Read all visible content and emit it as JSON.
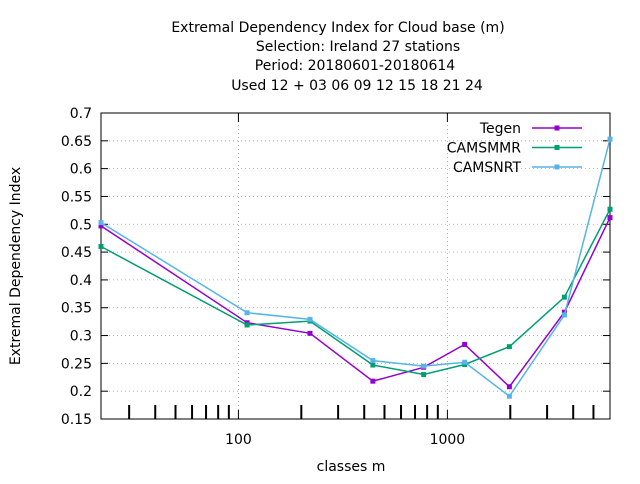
{
  "chart_data": {
    "type": "line",
    "title_lines": [
      "Extremal Dependency Index  for Cloud base (m)",
      "Selection: Ireland      27 stations",
      "Period: 20180601-20180614",
      "Used  12 + 03 06 09 12 15 18 21 24"
    ],
    "xlabel": "classes m",
    "ylabel": "Extremal Dependency Index",
    "x_scale": "log",
    "xlim": [
      22,
      6000
    ],
    "ylim": [
      0.15,
      0.7
    ],
    "y_ticks": [
      "0.15",
      "0.2",
      "0.25",
      "0.3",
      "0.35",
      "0.4",
      "0.45",
      "0.5",
      "0.55",
      "0.6",
      "0.65",
      "0.7"
    ],
    "x_tick_labels": [
      "100",
      "1000"
    ],
    "grid": true,
    "legend_position": "top-right",
    "x": [
      22,
      110,
      220,
      440,
      770,
      1210,
      1980,
      3630,
      6000
    ],
    "series": [
      {
        "name": "Tegen",
        "color": "#9400d3",
        "values": [
          0.497,
          0.323,
          0.304,
          0.218,
          0.243,
          0.284,
          0.208,
          0.342,
          0.512
        ]
      },
      {
        "name": "CAMSMMR",
        "color": "#009e73",
        "values": [
          0.46,
          0.319,
          0.326,
          0.247,
          0.23,
          0.248,
          0.28,
          0.369,
          0.527
        ]
      },
      {
        "name": "CAMSNRT",
        "color": "#56b4e9",
        "values": [
          0.503,
          0.341,
          0.329,
          0.255,
          0.245,
          0.252,
          0.191,
          0.337,
          0.653
        ]
      }
    ]
  }
}
